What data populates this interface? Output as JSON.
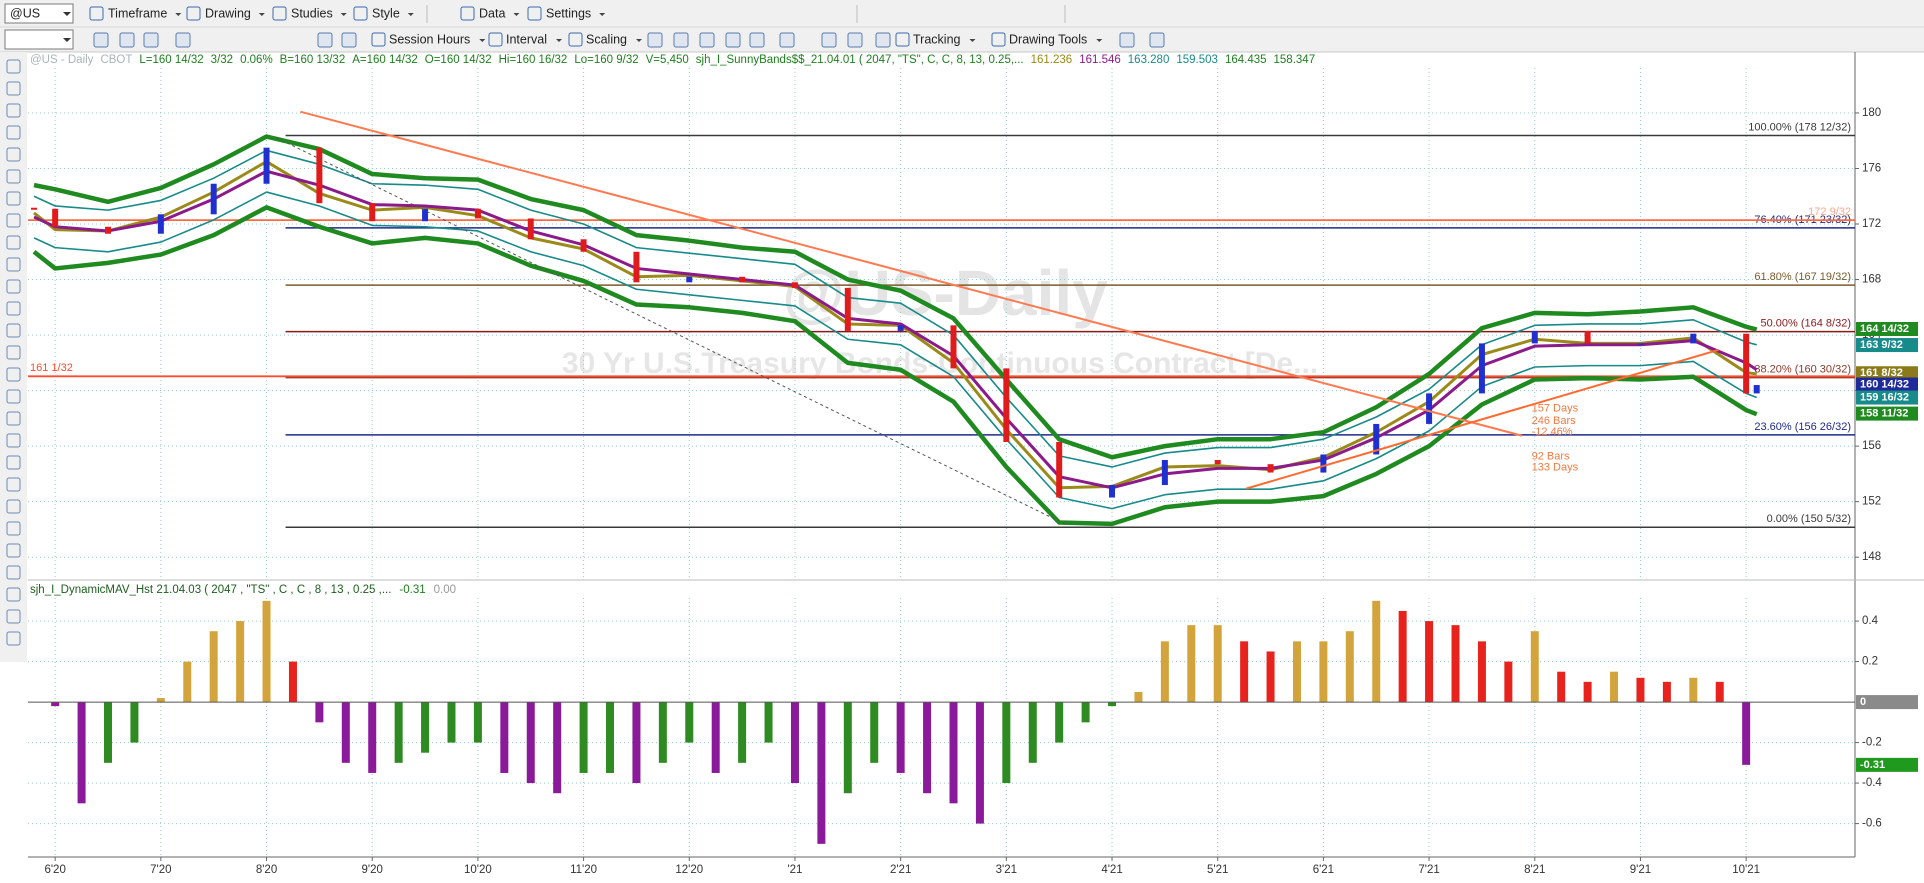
{
  "toolbar": {
    "symbol": "@US",
    "menu": [
      "Timeframe",
      "Drawing",
      "Studies",
      "Style",
      "Data",
      "Settings"
    ],
    "tools": [
      "Session Hours",
      "Interval",
      "Scaling",
      "Tracking",
      "Drawing Tools"
    ]
  },
  "chart_data": [
    {
      "type": "candlestick",
      "watermark": "@US-Daily",
      "watermark_subtitle": "30 Yr U.S.Treasury Bonds-Continuous Contract [De...",
      "info": [
        {
          "text": "@US - Daily",
          "color": "#a9b4b8"
        },
        {
          "text": "CBOT",
          "color": "#a9b4b8"
        },
        {
          "text": "L=160 14/32",
          "color": "#1d7f1d"
        },
        {
          "text": "3/32",
          "color": "#1d7f1d"
        },
        {
          "text": "0.06%",
          "color": "#1d7f1d"
        },
        {
          "text": "B=160 13/32",
          "color": "#1d7f1d"
        },
        {
          "text": "A=160 14/32",
          "color": "#1d7f1d"
        },
        {
          "text": "O=160 14/32",
          "color": "#1d7f1d"
        },
        {
          "text": "Hi=160 16/32",
          "color": "#1d7f1d"
        },
        {
          "text": "Lo=160 9/32",
          "color": "#1d7f1d"
        },
        {
          "text": "V=5,450",
          "color": "#1d7f1d"
        },
        {
          "text": "sjh_I_SunnyBands$$_21.04.01 (  2047, \"TS\",  C,  C,    8,  13,  0.25,...",
          "color": "#1d7f1d"
        },
        {
          "text": "161.236",
          "color": "#9a8a10"
        },
        {
          "text": "161.546",
          "color": "#8b1a8b"
        },
        {
          "text": "163.280",
          "color": "#1a8a8a"
        },
        {
          "text": "159.503",
          "color": "#1a8a8a"
        },
        {
          "text": "164.435",
          "color": "#1d7f1d"
        },
        {
          "text": "158.347",
          "color": "#1d7f1d"
        }
      ],
      "x": [
        -0.2,
        0,
        0.5,
        1,
        1.5,
        2,
        2.5,
        3,
        3.5,
        4,
        4.5,
        5,
        5.5,
        6,
        6.5,
        7,
        7.5,
        8,
        8.5,
        9,
        9.5,
        10,
        10.5,
        11,
        11.5,
        12,
        12.5,
        13,
        13.5,
        14,
        14.5,
        15,
        15.5,
        16,
        16.1
      ],
      "values": [
        173.1,
        171.8,
        171.3,
        172.7,
        174.9,
        177.5,
        173.5,
        172.2,
        173.1,
        172.4,
        170.9,
        170.0,
        167.8,
        168.2,
        167.8,
        167.4,
        164.3,
        164.7,
        161.6,
        156.3,
        152.3,
        153.2,
        155.0,
        154.7,
        154.1,
        155.4,
        157.6,
        159.8,
        163.4,
        164.3,
        163.4,
        163.4,
        164.1,
        159.8,
        160.4
      ],
      "up_color": "#1f2fd0",
      "down_color": "#e01b1b",
      "series": [
        {
          "color": "#178a8a",
          "width": 1.6,
          "values": [
            174.0,
            173.3,
            173.0,
            173.7,
            175.3,
            177.3,
            176.3,
            174.9,
            174.8,
            174.5,
            173.0,
            172.0,
            170.3,
            169.9,
            169.5,
            169.1,
            166.7,
            166.3,
            164.0,
            159.5,
            155.3,
            154.5,
            155.5,
            155.9,
            155.9,
            156.5,
            158.1,
            160.1,
            163.3,
            164.7,
            164.8,
            164.8,
            165.1,
            163.5,
            163.3
          ]
        },
        {
          "color": "#178a8a",
          "width": 1.6,
          "values": [
            171.0,
            170.3,
            170.0,
            170.7,
            172.3,
            174.3,
            173.3,
            171.9,
            171.8,
            171.5,
            170.0,
            169.0,
            167.3,
            166.9,
            166.5,
            166.1,
            163.7,
            163.3,
            161.0,
            156.5,
            152.3,
            151.5,
            152.5,
            152.9,
            152.9,
            153.5,
            155.1,
            157.1,
            160.3,
            161.7,
            161.8,
            161.8,
            162.1,
            159.8,
            159.5
          ]
        },
        {
          "color": "#1f8a1f",
          "width": 4.5,
          "values": [
            174.8,
            174.5,
            173.6,
            174.6,
            176.3,
            178.3,
            177.4,
            175.6,
            175.3,
            175.2,
            173.8,
            173.0,
            171.2,
            170.8,
            170.3,
            170.0,
            168.0,
            167.2,
            165.2,
            160.8,
            156.5,
            155.2,
            156.0,
            156.5,
            156.5,
            157.0,
            158.8,
            161.2,
            164.5,
            165.6,
            165.5,
            165.7,
            166.0,
            164.6,
            164.4
          ]
        },
        {
          "color": "#1f8a1f",
          "width": 4.5,
          "values": [
            170.0,
            168.8,
            169.2,
            169.8,
            171.2,
            173.2,
            171.8,
            170.6,
            171.0,
            170.6,
            169.0,
            167.9,
            166.2,
            166.0,
            165.6,
            165.0,
            162.0,
            161.5,
            159.2,
            154.5,
            150.5,
            150.4,
            151.6,
            152.0,
            152.0,
            152.4,
            154.0,
            156.0,
            159.0,
            160.8,
            160.9,
            160.8,
            161.0,
            158.6,
            158.3
          ]
        },
        {
          "color": "#9a8a1a",
          "width": 3,
          "values": [
            172.8,
            171.6,
            171.5,
            172.5,
            174.3,
            176.5,
            174.2,
            173.0,
            173.2,
            172.6,
            171.0,
            170.2,
            168.2,
            168.3,
            167.9,
            167.5,
            164.8,
            164.7,
            162.0,
            157.2,
            153.0,
            153.1,
            154.5,
            154.6,
            154.3,
            155.2,
            157.0,
            159.2,
            162.6,
            163.7,
            163.4,
            163.4,
            163.8,
            161.3,
            161.2
          ]
        },
        {
          "color": "#8b1a8b",
          "width": 3,
          "values": [
            172.5,
            171.8,
            171.5,
            172.2,
            173.8,
            175.8,
            174.8,
            173.4,
            173.3,
            173.0,
            171.5,
            170.5,
            168.8,
            168.4,
            168.0,
            167.6,
            165.2,
            164.8,
            162.5,
            158.0,
            153.8,
            153.0,
            154.0,
            154.4,
            154.4,
            155.0,
            156.6,
            158.6,
            161.8,
            163.2,
            163.3,
            163.3,
            163.6,
            162.0,
            161.5
          ]
        }
      ],
      "xlim": [
        -0.257,
        17.03
      ],
      "ylim": [
        146.43,
        184.39
      ],
      "yticks": [
        148,
        152,
        156,
        160,
        164,
        168,
        172,
        176,
        180
      ],
      "grid": true,
      "levels_start": 2.18,
      "levels": [
        {
          "value": 178.375,
          "label": "100.00% (178 12/32)",
          "color": "#3a3a3a"
        },
        {
          "value": 171.71875,
          "label": "76.40% (171 23/32)",
          "color": "#1f2a8a"
        },
        {
          "value": 167.59375,
          "label": "61.80% (167 19/32)",
          "color": "#7a5a2a"
        },
        {
          "value": 164.25,
          "label": "50.00% (164 8/32)",
          "color": "#8a1a1a"
        },
        {
          "value": 160.9375,
          "label": "38.20% (160 30/32)",
          "color": "#8a3a2a"
        },
        {
          "value": 156.8125,
          "label": "23.60% (156 26/32)",
          "color": "#1f2a8a"
        },
        {
          "value": 150.15625,
          "label": "0.00% (150 5/32)",
          "color": "#3a3a3a"
        }
      ],
      "lines": [
        {
          "value": 172.28125,
          "label": "172 9/32",
          "color": "#ff6a40"
        },
        {
          "value": 161.03125,
          "label": "161 1/32",
          "color": "#ff4a30"
        }
      ],
      "trendlines": [
        {
          "x": [
            2.32,
            13.88
          ],
          "y": [
            180.09,
            156.75
          ],
          "color": "#ff7a50",
          "dashed": false
        },
        {
          "x": [
            2.09,
            9.58
          ],
          "y": [
            178.23,
            150.29
          ],
          "color": "#555555",
          "dashed": true
        },
        {
          "x": [
            11.27,
            15.74
          ],
          "y": [
            152.94,
            162.94
          ],
          "color": "#ff6a30",
          "dashed": false
        }
      ],
      "annotations": [
        {
          "x": 13.97,
          "y": 158.69,
          "label": "157 Days"
        },
        {
          "x": 13.97,
          "y": 157.81,
          "label": "246 Bars"
        },
        {
          "x": 13.97,
          "y": 157.01,
          "label": "-12.46%"
        },
        {
          "x": 13.97,
          "y": 155.24,
          "label": "92 Bars"
        },
        {
          "x": 13.97,
          "y": 154.45,
          "label": "133 Days"
        }
      ],
      "annotation_color": "#f07a40",
      "price_labels": [
        {
          "value": 164.4375,
          "label": "164 14/32",
          "color": "#1f8a1f"
        },
        {
          "value": 163.28125,
          "label": "163 9/32",
          "color": "#178a8a"
        },
        {
          "value": 161.25,
          "label": "161 8/32",
          "color": "#8a7a1a"
        },
        {
          "value": 160.4375,
          "label": "160 14/32",
          "color": "#1f2a9a"
        },
        {
          "value": 159.5,
          "label": "159 16/32",
          "color": "#178a8a"
        },
        {
          "value": 158.34375,
          "label": "158 11/32",
          "color": "#1f8a1f"
        }
      ]
    },
    {
      "type": "bar",
      "title": "sjh_I_DynamicMAV_Hst 21.04.03 ( 2047 , \"TS\" , C , C ,  8 , 13 , 0.25 ,...",
      "title_values": [
        {
          "text": "-0.31",
          "color": "#1d7f1d"
        },
        {
          "text": "0.00",
          "color": "#999999"
        }
      ],
      "x": [
        0,
        0.25,
        0.5,
        0.75,
        1,
        1.25,
        1.5,
        1.75,
        2,
        2.25,
        2.5,
        2.75,
        3,
        3.25,
        3.5,
        3.75,
        4,
        4.25,
        4.5,
        4.75,
        5,
        5.25,
        5.5,
        5.75,
        6,
        6.25,
        6.5,
        6.75,
        7,
        7.25,
        7.5,
        7.75,
        8,
        8.25,
        8.5,
        8.75,
        9,
        9.25,
        9.5,
        9.75,
        10,
        10.25,
        10.5,
        10.75,
        11,
        11.25,
        11.5,
        11.75,
        12,
        12.25,
        12.5,
        12.75,
        13,
        13.25,
        13.5,
        13.75,
        14,
        14.25,
        14.5,
        14.75,
        15,
        15.25,
        15.5,
        15.75,
        16
      ],
      "values": [
        -0.02,
        -0.5,
        -0.3,
        -0.2,
        0.02,
        0.2,
        0.35,
        0.4,
        0.5,
        0.2,
        -0.1,
        -0.3,
        -0.35,
        -0.3,
        -0.25,
        -0.2,
        -0.2,
        -0.35,
        -0.4,
        -0.45,
        -0.35,
        -0.35,
        -0.4,
        -0.3,
        -0.2,
        -0.35,
        -0.3,
        -0.2,
        -0.4,
        -0.7,
        -0.45,
        -0.3,
        -0.35,
        -0.45,
        -0.5,
        -0.6,
        -0.4,
        -0.3,
        -0.2,
        -0.1,
        -0.02,
        0.05,
        0.3,
        0.38,
        0.38,
        0.3,
        0.25,
        0.3,
        0.3,
        0.35,
        0.5,
        0.45,
        0.4,
        0.38,
        0.3,
        0.2,
        0.35,
        0.15,
        0.1,
        0.15,
        0.12,
        0.1,
        0.12,
        0.1,
        -0.31
      ],
      "colors": {
        "pos_up": "#d4a43c",
        "pos_down": "#e8231e",
        "neg_down": "#8b1a9b",
        "neg_up": "#2e8b22"
      },
      "xlim": [
        -0.257,
        17.03
      ],
      "xticks": [
        {
          "value": 0,
          "label": "6'20"
        },
        {
          "value": 1,
          "label": "7'20"
        },
        {
          "value": 2,
          "label": "8'20"
        },
        {
          "value": 3,
          "label": "9'20"
        },
        {
          "value": 4,
          "label": "10'20"
        },
        {
          "value": 5,
          "label": "11'20"
        },
        {
          "value": 6,
          "label": "12'20"
        },
        {
          "value": 7,
          "label": "'21"
        },
        {
          "value": 8,
          "label": "2'21"
        },
        {
          "value": 9,
          "label": "3'21"
        },
        {
          "value": 10,
          "label": "4'21"
        },
        {
          "value": 11,
          "label": "5'21"
        },
        {
          "value": 12,
          "label": "6'21"
        },
        {
          "value": 13,
          "label": "7'21"
        },
        {
          "value": 14,
          "label": "8'21"
        },
        {
          "value": 15,
          "label": "9'21"
        },
        {
          "value": 16,
          "label": "10'21"
        }
      ],
      "ylim": [
        -0.765,
        0.593
      ],
      "yticks": [
        -0.6,
        -0.4,
        -0.2,
        0.2,
        0.4
      ],
      "grid": true,
      "price_labels": [
        {
          "value": 0,
          "label": "0",
          "color": "#8a8a8a"
        },
        {
          "value": -0.31,
          "label": "-0.31",
          "color": "#1f9a1f"
        }
      ]
    }
  ]
}
